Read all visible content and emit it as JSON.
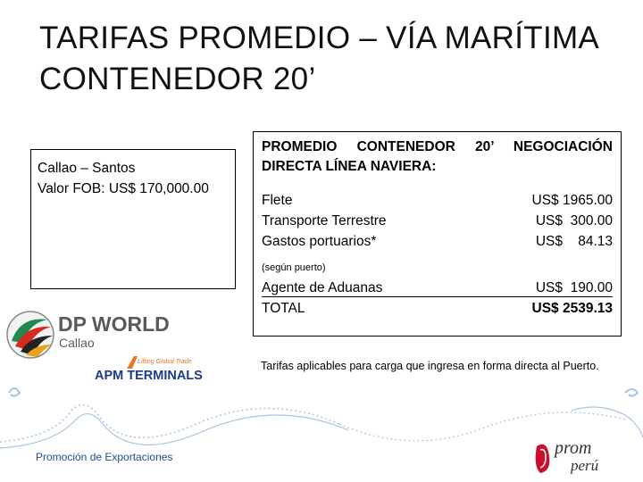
{
  "slide": {
    "title_line1": "TARIFAS PROMEDIO – VÍA MARÍTIMA",
    "title_line2": "CONTENEDOR 20’"
  },
  "route_box": {
    "route": "Callao – Santos",
    "fob": "Valor FOB: US$ 170,000.00"
  },
  "cost_box": {
    "header_line1": "PROMEDIO CONTENEDOR 20’ NEGOCIACIÓN",
    "header_line2": "DIRECTA LÍNEA NAVIERA:",
    "items": [
      {
        "label": "Flete",
        "value": "US$ 1965.00"
      },
      {
        "label": "Transporte Terrestre",
        "value": "US$  300.00"
      },
      {
        "label": "Gastos portuarios*",
        "value": "US$    84.13"
      }
    ],
    "note": "(según puerto)",
    "agent": {
      "label": "Agente de Aduanas",
      "value": "US$  190.00"
    },
    "total": {
      "label": "TOTAL",
      "value": "US$ 2539.13"
    }
  },
  "caption": "Tarifas aplicables para carga que ingresa en forma directa al Puerto.",
  "logos": {
    "dp_world_name": "DP WORLD",
    "dp_world_sub": "Callao",
    "apm_tagline": "Lifting Global Trade",
    "apm_name": "APM TERMINALS",
    "promperu_line1": "prom",
    "promperu_line2": "perú"
  },
  "footer": {
    "text": "Promoción de Exportaciones"
  },
  "colors": {
    "footer_blue": "#1f4e9a",
    "apm_blue": "#1b3b8c",
    "apm_orange": "#e87722",
    "dp_gray": "#5a5a5a",
    "promperu_red": "#c8102e",
    "decor_blue": "#a9c4e3"
  }
}
